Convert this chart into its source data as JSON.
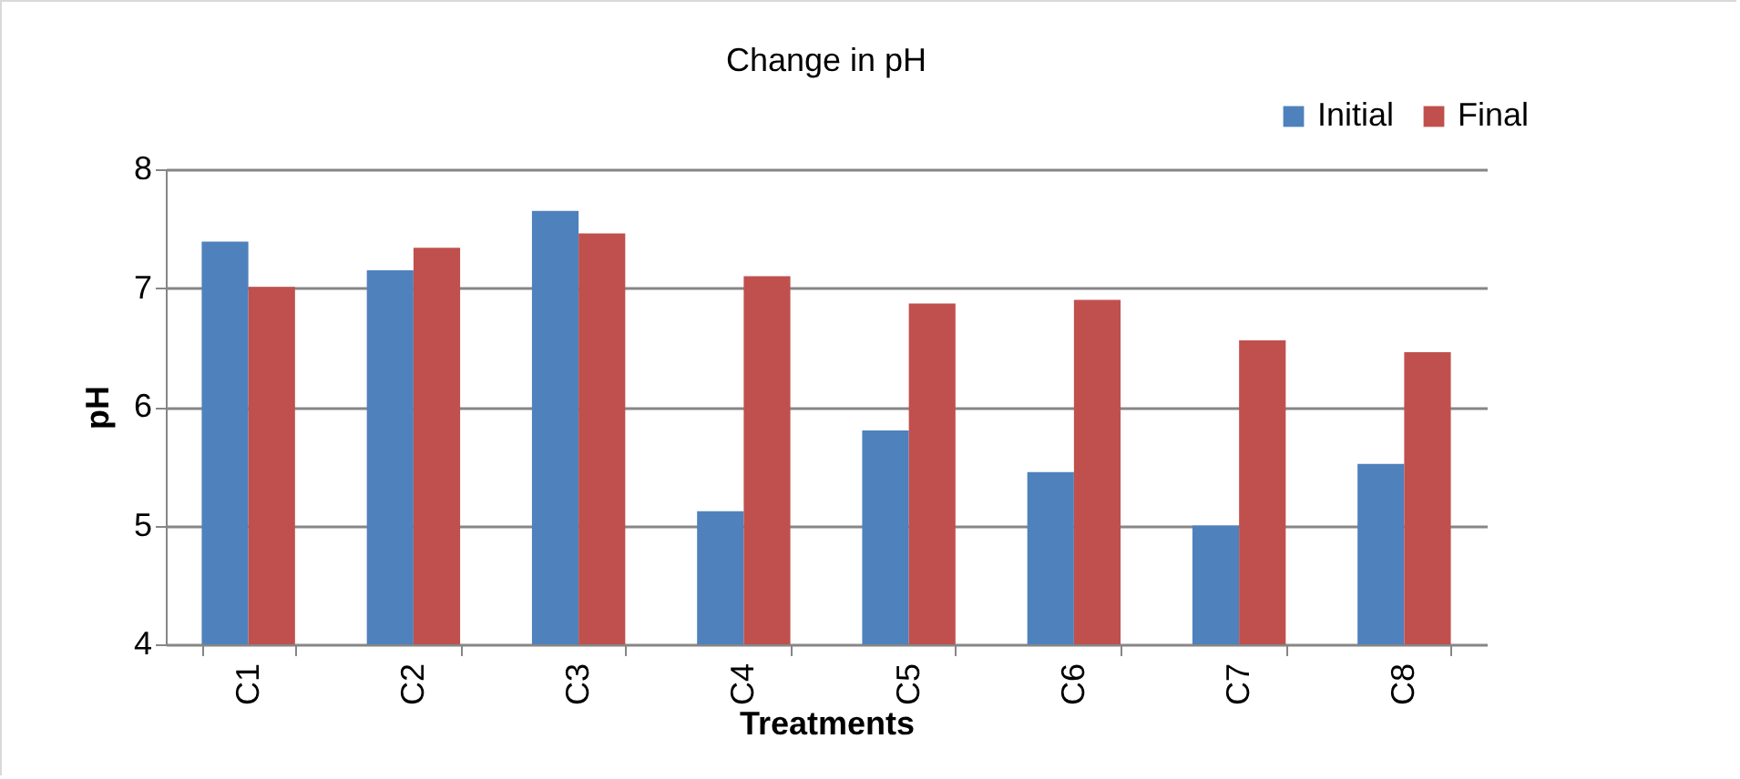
{
  "chart_data": {
    "type": "bar",
    "title": "Change in pH",
    "xlabel": "Treatments",
    "ylabel": "pH",
    "categories": [
      "C1",
      "C2",
      "C3",
      "C4",
      "C5",
      "C6",
      "C7",
      "C8"
    ],
    "series": [
      {
        "name": "Initial",
        "color": "#4f81bd",
        "values": [
          7.39,
          7.15,
          7.65,
          5.12,
          5.8,
          5.45,
          5.0,
          5.52
        ]
      },
      {
        "name": "Final",
        "color": "#c0504d",
        "values": [
          7.01,
          7.34,
          7.46,
          7.1,
          6.87,
          6.9,
          6.56,
          6.46
        ]
      }
    ],
    "ylim": [
      4,
      8
    ],
    "yticks": [
      4,
      5,
      6,
      7,
      8
    ],
    "grid": "y",
    "legend": "top right"
  }
}
